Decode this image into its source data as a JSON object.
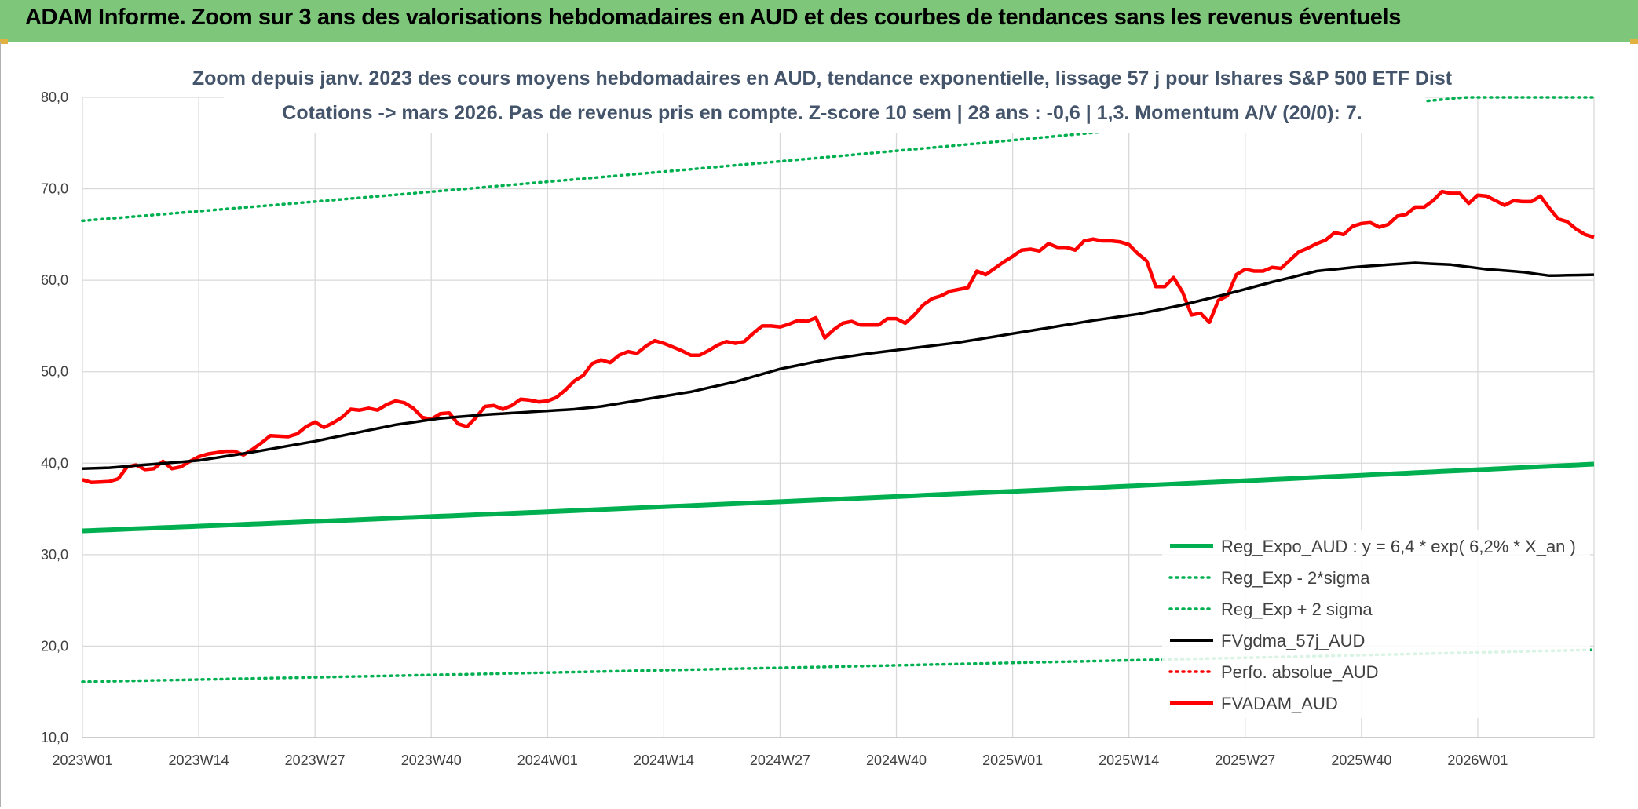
{
  "header": {
    "title": "ADAM Informe. Zoom sur 3 ans des valorisations hebdomadaires en AUD et des courbes de tendances sans les revenus éventuels"
  },
  "colors": {
    "banner": "#7dc67a",
    "red": "#ff0000",
    "green": "#00b050",
    "black": "#000000",
    "grid": "#d9d9d9"
  },
  "chart_data": {
    "type": "line",
    "title_line1": "Zoom depuis janv. 2023 des cours moyens hebdomadaires en AUD, tendance exponentielle, lissage 57 j pour Ishares S&P 500 ETF Dist",
    "title_line2": "Cotations -> mars 2026. Pas de revenus pris en compte. Z-score 10 sem | 28 ans : -0,6 | 1,3. Momentum A/V (20/0): 7.",
    "ylim": [
      10,
      80
    ],
    "y_ticks": [
      "10,0",
      "20,0",
      "30,0",
      "40,0",
      "50,0",
      "60,0",
      "70,0",
      "80,0"
    ],
    "x_tick_labels": [
      "2023W01",
      "2023W14",
      "2023W27",
      "2023W40",
      "2024W01",
      "2024W14",
      "2024W27",
      "2024W40",
      "2025W01",
      "2025W14",
      "2025W27",
      "2025W40",
      "2026W01"
    ],
    "n_weeks": 170,
    "legend": [
      {
        "label": "Reg_Expo_AUD : y = 6,4 * exp( 6,2% *  X_an )",
        "color": "#00b050",
        "style": "solid-thick"
      },
      {
        "label": "Reg_Exp - 2*sigma",
        "color": "#00b050",
        "style": "dotted"
      },
      {
        "label": "Reg_Exp + 2 sigma",
        "color": "#00b050",
        "style": "dotted"
      },
      {
        "label": "FVgdma_57j_AUD",
        "color": "#000000",
        "style": "solid"
      },
      {
        "label": "Perfo. absolue_AUD",
        "color": "#ff0000",
        "style": "dotted"
      },
      {
        "label": "FVADAM_AUD",
        "color": "#ff0000",
        "style": "solid-thick"
      }
    ],
    "series": [
      {
        "name": "Reg_Expo_AUD",
        "anchors": [
          [
            0,
            32.6
          ],
          [
            169,
            39.9
          ]
        ]
      },
      {
        "name": "Reg_Exp - 2*sigma",
        "anchors": [
          [
            0,
            16.1
          ],
          [
            169,
            19.6
          ]
        ]
      },
      {
        "name": "Reg_Exp + 2 sigma",
        "anchors": [
          [
            0,
            66.5
          ],
          [
            169,
            81.4
          ]
        ],
        "cap": 80
      },
      {
        "name": "FVgdma_57j_AUD",
        "anchors": [
          [
            0,
            39.4
          ],
          [
            3,
            39.5
          ],
          [
            8,
            39.9
          ],
          [
            13,
            40.3
          ],
          [
            19,
            41.2
          ],
          [
            26,
            42.4
          ],
          [
            30,
            43.2
          ],
          [
            35,
            44.2
          ],
          [
            40,
            44.9
          ],
          [
            45,
            45.3
          ],
          [
            50,
            45.6
          ],
          [
            55,
            45.9
          ],
          [
            58,
            46.2
          ],
          [
            63,
            47.0
          ],
          [
            68,
            47.8
          ],
          [
            73,
            48.9
          ],
          [
            78,
            50.3
          ],
          [
            83,
            51.3
          ],
          [
            88,
            52.0
          ],
          [
            93,
            52.6
          ],
          [
            98,
            53.2
          ],
          [
            103,
            54.0
          ],
          [
            108,
            54.8
          ],
          [
            113,
            55.6
          ],
          [
            118,
            56.3
          ],
          [
            123,
            57.3
          ],
          [
            128,
            58.5
          ],
          [
            133,
            59.8
          ],
          [
            138,
            61.0
          ],
          [
            143,
            61.5
          ],
          [
            149,
            61.9
          ],
          [
            153,
            61.7
          ],
          [
            157,
            61.2
          ],
          [
            161,
            60.9
          ],
          [
            164,
            60.5
          ],
          [
            169,
            60.6
          ]
        ]
      },
      {
        "name": "FVADAM_AUD",
        "anchors": [
          [
            0,
            38.2
          ],
          [
            1,
            37.9
          ],
          [
            3,
            38.0
          ],
          [
            4,
            38.3
          ],
          [
            5,
            39.6
          ],
          [
            6,
            39.8
          ],
          [
            7,
            39.3
          ],
          [
            8,
            39.4
          ],
          [
            9,
            40.2
          ],
          [
            10,
            39.4
          ],
          [
            11,
            39.6
          ],
          [
            12,
            40.2
          ],
          [
            13,
            40.7
          ],
          [
            14,
            41.0
          ],
          [
            16,
            41.3
          ],
          [
            17,
            41.3
          ],
          [
            18,
            40.9
          ],
          [
            19,
            41.5
          ],
          [
            20,
            42.2
          ],
          [
            21,
            43.0
          ],
          [
            23,
            42.9
          ],
          [
            24,
            43.2
          ],
          [
            25,
            44.0
          ],
          [
            26,
            44.5
          ],
          [
            27,
            43.9
          ],
          [
            28,
            44.4
          ],
          [
            29,
            45.0
          ],
          [
            30,
            45.9
          ],
          [
            31,
            45.8
          ],
          [
            32,
            46.0
          ],
          [
            33,
            45.8
          ],
          [
            34,
            46.4
          ],
          [
            35,
            46.8
          ],
          [
            36,
            46.6
          ],
          [
            37,
            46.0
          ],
          [
            38,
            45.0
          ],
          [
            39,
            44.8
          ],
          [
            40,
            45.4
          ],
          [
            41,
            45.5
          ],
          [
            42,
            44.3
          ],
          [
            43,
            44.0
          ],
          [
            44,
            45.0
          ],
          [
            45,
            46.2
          ],
          [
            46,
            46.3
          ],
          [
            47,
            45.9
          ],
          [
            48,
            46.3
          ],
          [
            49,
            47.0
          ],
          [
            50,
            46.9
          ],
          [
            51,
            46.7
          ],
          [
            52,
            46.8
          ],
          [
            53,
            47.2
          ],
          [
            54,
            48.0
          ],
          [
            55,
            49.0
          ],
          [
            56,
            49.6
          ],
          [
            57,
            50.9
          ],
          [
            58,
            51.3
          ],
          [
            59,
            51.0
          ],
          [
            60,
            51.8
          ],
          [
            61,
            52.2
          ],
          [
            62,
            52.0
          ],
          [
            63,
            52.8
          ],
          [
            64,
            53.4
          ],
          [
            65,
            53.1
          ],
          [
            66,
            52.7
          ],
          [
            67,
            52.3
          ],
          [
            68,
            51.8
          ],
          [
            69,
            51.8
          ],
          [
            70,
            52.3
          ],
          [
            71,
            52.9
          ],
          [
            72,
            53.3
          ],
          [
            73,
            53.1
          ],
          [
            74,
            53.3
          ],
          [
            75,
            54.2
          ],
          [
            76,
            55.0
          ],
          [
            77,
            55.0
          ],
          [
            78,
            54.9
          ],
          [
            79,
            55.2
          ],
          [
            80,
            55.6
          ],
          [
            81,
            55.5
          ],
          [
            82,
            55.9
          ],
          [
            83,
            53.7
          ],
          [
            84,
            54.6
          ],
          [
            85,
            55.3
          ],
          [
            86,
            55.5
          ],
          [
            87,
            55.1
          ],
          [
            89,
            55.1
          ],
          [
            90,
            55.8
          ],
          [
            91,
            55.8
          ],
          [
            92,
            55.3
          ],
          [
            93,
            56.2
          ],
          [
            94,
            57.3
          ],
          [
            95,
            58.0
          ],
          [
            96,
            58.3
          ],
          [
            97,
            58.8
          ],
          [
            98,
            59.0
          ],
          [
            99,
            59.2
          ],
          [
            100,
            61.0
          ],
          [
            101,
            60.6
          ],
          [
            102,
            61.3
          ],
          [
            103,
            62.0
          ],
          [
            104,
            62.6
          ],
          [
            105,
            63.3
          ],
          [
            106,
            63.4
          ],
          [
            107,
            63.2
          ],
          [
            108,
            64.0
          ],
          [
            109,
            63.6
          ],
          [
            110,
            63.6
          ],
          [
            111,
            63.3
          ],
          [
            112,
            64.3
          ],
          [
            113,
            64.5
          ],
          [
            114,
            64.3
          ],
          [
            115,
            64.3
          ],
          [
            116,
            64.2
          ],
          [
            117,
            63.9
          ],
          [
            118,
            62.9
          ],
          [
            119,
            62.1
          ],
          [
            120,
            59.3
          ],
          [
            121,
            59.3
          ],
          [
            122,
            60.3
          ],
          [
            123,
            58.7
          ],
          [
            124,
            56.2
          ],
          [
            125,
            56.4
          ],
          [
            126,
            55.4
          ],
          [
            127,
            57.8
          ],
          [
            128,
            58.3
          ],
          [
            129,
            60.6
          ],
          [
            130,
            61.2
          ],
          [
            131,
            61.0
          ],
          [
            132,
            61.0
          ],
          [
            133,
            61.4
          ],
          [
            134,
            61.3
          ],
          [
            135,
            62.2
          ],
          [
            136,
            63.1
          ],
          [
            137,
            63.5
          ],
          [
            138,
            64.0
          ],
          [
            139,
            64.4
          ],
          [
            140,
            65.2
          ],
          [
            141,
            65.0
          ],
          [
            142,
            65.9
          ],
          [
            143,
            66.2
          ],
          [
            144,
            66.3
          ],
          [
            145,
            65.8
          ],
          [
            146,
            66.1
          ],
          [
            147,
            67.0
          ],
          [
            148,
            67.2
          ],
          [
            149,
            68.0
          ],
          [
            150,
            68.0
          ],
          [
            151,
            68.7
          ],
          [
            152,
            69.7
          ],
          [
            153,
            69.5
          ],
          [
            154,
            69.5
          ],
          [
            155,
            68.4
          ],
          [
            156,
            69.3
          ],
          [
            157,
            69.2
          ],
          [
            158,
            68.7
          ],
          [
            159,
            68.2
          ],
          [
            160,
            68.7
          ],
          [
            161,
            68.6
          ],
          [
            162,
            68.6
          ],
          [
            163,
            69.2
          ],
          [
            164,
            67.9
          ],
          [
            165,
            66.7
          ],
          [
            166,
            66.4
          ],
          [
            167,
            65.6
          ],
          [
            168,
            65.0
          ],
          [
            169,
            64.7
          ]
        ]
      }
    ]
  }
}
